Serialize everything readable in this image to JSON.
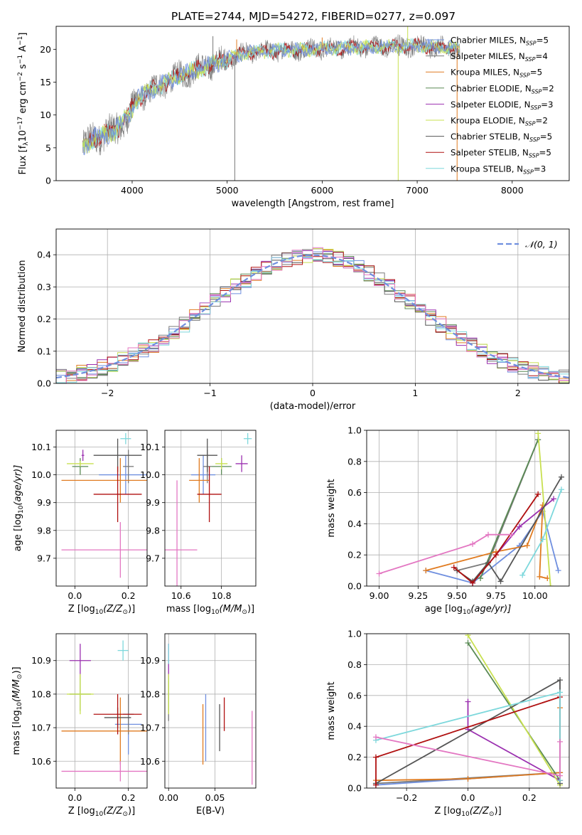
{
  "figure": {
    "title": "PLATE=2744, MJD=54272, FIBERID=0277, z=0.097"
  },
  "model_colors": {
    "Chabrier MILES": "#6f8fdf",
    "Salpeter MILES": "#7a7a7a",
    "Kroupa MILES": "#e07b20",
    "Chabrier ELODIE": "#5a8a55",
    "Salpeter ELODIE": "#9b30b0",
    "Kroupa ELODIE": "#c8e050",
    "Chabrier STELIB": "#555555",
    "Salpeter STELIB": "#b01010",
    "Kroupa STELIB": "#7dd8dc",
    "extra_pink": "#e377c2"
  },
  "chart_data": [
    {
      "id": "spectrum",
      "type": "line",
      "title": "PLATE=2744, MJD=54272, FIBERID=0277, z=0.097",
      "xlabel": "wavelength [Angstrom, rest frame]",
      "ylabel_main": "Flux [f",
      "ylabel_sub": "λ",
      "ylabel_rest": "10",
      "ylabel_exp": "−17",
      "ylabel_tail": " erg cm",
      "ylabel_exp2": "−2",
      "ylabel_tail2": " s",
      "ylabel_exp3": "−1",
      "ylabel_tail3": " A",
      "ylabel_exp4": "−1",
      "ylabel_end": "]",
      "xlim": [
        3200,
        8600
      ],
      "ylim": [
        0,
        23.5
      ],
      "xticks": [
        4000,
        5000,
        6000,
        7000,
        8000
      ],
      "yticks": [
        0,
        5,
        10,
        15,
        20
      ],
      "continuum_anchors": [
        [
          3480,
          5.2
        ],
        [
          3600,
          6.5
        ],
        [
          3800,
          7.5
        ],
        [
          3950,
          9.5
        ],
        [
          4050,
          12.5
        ],
        [
          4300,
          14.5
        ],
        [
          4500,
          16
        ],
        [
          4800,
          17.5
        ],
        [
          5000,
          18.5
        ],
        [
          5200,
          19.5
        ],
        [
          5500,
          19.8
        ],
        [
          5800,
          20
        ],
        [
          6200,
          20.2
        ],
        [
          6600,
          20.4
        ],
        [
          7000,
          20.5
        ],
        [
          7300,
          20.3
        ],
        [
          7450,
          20
        ]
      ],
      "spikes": [
        [
          5080,
          0
        ],
        [
          5100,
          21.5
        ],
        [
          6800,
          0
        ],
        [
          6810,
          19
        ],
        [
          7420,
          0
        ],
        [
          7440,
          19.5
        ],
        [
          4850,
          22
        ],
        [
          6000,
          21.8
        ],
        [
          6900,
          23.8
        ]
      ],
      "legend": [
        {
          "name_pre": "Chabrier MILES, N",
          "sub": "SSP",
          "name_post": "=5",
          "color": "#6f8fdf"
        },
        {
          "name_pre": "Salpeter MILES, N",
          "sub": "SSP",
          "name_post": "=4",
          "color": "#7a7a7a"
        },
        {
          "name_pre": "Kroupa MILES, N",
          "sub": "SSP",
          "name_post": "=5",
          "color": "#e07b20"
        },
        {
          "name_pre": "Chabrier ELODIE, N",
          "sub": "SSP",
          "name_post": "=2",
          "color": "#5a8a55"
        },
        {
          "name_pre": "Salpeter ELODIE, N",
          "sub": "SSP",
          "name_post": "=3",
          "color": "#9b30b0"
        },
        {
          "name_pre": "Kroupa ELODIE, N",
          "sub": "SSP",
          "name_post": "=2",
          "color": "#c8e050"
        },
        {
          "name_pre": "Chabrier STELIB, N",
          "sub": "SSP",
          "name_post": "=5",
          "color": "#555555"
        },
        {
          "name_pre": "Salpeter STELIB, N",
          "sub": "SSP",
          "name_post": "=5",
          "color": "#b01010"
        },
        {
          "name_pre": "Kroupa STELIB, N",
          "sub": "SSP",
          "name_post": "=3",
          "color": "#7dd8dc"
        }
      ]
    },
    {
      "id": "residuals",
      "type": "line",
      "xlabel": "(data-model)/error",
      "ylabel": "Normed distribution",
      "xlim": [
        -2.5,
        2.5
      ],
      "ylim": [
        0,
        0.48
      ],
      "xticks": [
        -2,
        -1,
        0,
        1,
        2
      ],
      "yticks": [
        0.0,
        0.1,
        0.2,
        0.3,
        0.4
      ],
      "grid": true,
      "legend": [
        {
          "name": "𝒩(0, 1)",
          "color": "#6f8fdf",
          "style": "dashed"
        }
      ],
      "gaussian": {
        "mean": 0,
        "sigma": 1
      },
      "histogram_bin_width": 0.1,
      "histogram_series_colors": [
        "#6f8fdf",
        "#7a7a7a",
        "#e07b20",
        "#5a8a55",
        "#9b30b0",
        "#c8e050",
        "#555555",
        "#b01010",
        "#7dd8dc",
        "#e377c2"
      ]
    },
    {
      "id": "age_vs_Z",
      "type": "scatter",
      "xlabel": "Z [log",
      "xlabel_sub": "10",
      "xlabel_tail": "(Z/Z",
      "xlabel_sub2": "⊙",
      "xlabel_end": ")]",
      "ylabel": "age  [log",
      "ylabel_sub": "10",
      "ylabel_tail": "(age/yr)]",
      "xlim": [
        -0.07,
        0.27
      ],
      "ylim": [
        9.6,
        10.16
      ],
      "xticks": [
        0.0,
        0.2
      ],
      "yticks": [
        9.7,
        9.8,
        9.9,
        10.0,
        10.1
      ],
      "points": [
        {
          "x": 0.19,
          "y": 10.0,
          "xerr": 0.1,
          "yerr": 0.07,
          "color": "#6f8fdf"
        },
        {
          "x": 0.2,
          "y": 10.03,
          "xerr": 0.02,
          "yerr": 0.06,
          "color": "#7a7a7a"
        },
        {
          "x": 0.17,
          "y": 9.98,
          "xerr": 0.22,
          "yerr": 0.08,
          "color": "#e07b20"
        },
        {
          "x": 0.02,
          "y": 10.03,
          "xerr": 0.03,
          "yerr": 0.03,
          "color": "#5a8a55"
        },
        {
          "x": 0.03,
          "y": 10.07,
          "xerr": 0.005,
          "yerr": 0.02,
          "color": "#9b30b0"
        },
        {
          "x": 0.02,
          "y": 10.04,
          "xerr": 0.05,
          "yerr": 0.01,
          "color": "#c8e050"
        },
        {
          "x": 0.16,
          "y": 10.07,
          "xerr": 0.09,
          "yerr": 0.06,
          "color": "#555555"
        },
        {
          "x": 0.16,
          "y": 9.93,
          "xerr": 0.09,
          "yerr": 0.1,
          "color": "#b01010"
        },
        {
          "x": 0.19,
          "y": 10.13,
          "xerr": 0.02,
          "yerr": 0.02,
          "color": "#7dd8dc"
        },
        {
          "x": 0.17,
          "y": 9.73,
          "xerr": 0.22,
          "yerr": 0.1,
          "color": "#e377c2"
        }
      ]
    },
    {
      "id": "age_vs_mass",
      "type": "scatter",
      "xlabel": "mass [log",
      "xlabel_sub": "10",
      "xlabel_tail": "(M/M",
      "xlabel_sub2": "⊙",
      "xlabel_end": ")]",
      "xlim": [
        10.52,
        10.97
      ],
      "ylim": [
        9.6,
        10.16
      ],
      "xticks": [
        10.6,
        10.8
      ],
      "yticks": [
        9.7,
        9.8,
        9.9,
        10.0,
        10.1
      ],
      "points": [
        {
          "x": 10.71,
          "y": 10.0,
          "xerr": 0.06,
          "yerr": 0.07,
          "color": "#6f8fdf"
        },
        {
          "x": 10.73,
          "y": 10.03,
          "xerr": 0.02,
          "yerr": 0.06,
          "color": "#7a7a7a"
        },
        {
          "x": 10.69,
          "y": 9.98,
          "xerr": 0.05,
          "yerr": 0.08,
          "color": "#e07b20"
        },
        {
          "x": 10.8,
          "y": 10.03,
          "xerr": 0.05,
          "yerr": 0.03,
          "color": "#5a8a55"
        },
        {
          "x": 10.9,
          "y": 10.04,
          "xerr": 0.03,
          "yerr": 0.03,
          "color": "#9b30b0"
        },
        {
          "x": 10.8,
          "y": 10.04,
          "xerr": 0.03,
          "yerr": 0.02,
          "color": "#c8e050"
        },
        {
          "x": 10.73,
          "y": 10.07,
          "xerr": 0.05,
          "yerr": 0.06,
          "color": "#555555"
        },
        {
          "x": 10.74,
          "y": 9.93,
          "xerr": 0.06,
          "yerr": 0.1,
          "color": "#b01010"
        },
        {
          "x": 10.93,
          "y": 10.13,
          "xerr": 0.02,
          "yerr": 0.02,
          "color": "#7dd8dc"
        },
        {
          "x": 10.58,
          "y": 9.73,
          "xerr": 0.1,
          "yerr": 0.25,
          "color": "#e377c2"
        }
      ]
    },
    {
      "id": "mass_weight_vs_age",
      "type": "line",
      "xlabel": "age  [log",
      "xlabel_sub": "10",
      "xlabel_tail": "(age/yr)]",
      "ylabel": "mass weight",
      "xlim": [
        8.92,
        10.22
      ],
      "ylim": [
        0,
        1
      ],
      "xticks": [
        9.0,
        9.25,
        9.5,
        9.75,
        10.0
      ],
      "yticks": [
        0.0,
        0.2,
        0.4,
        0.6,
        0.8,
        1.0
      ],
      "grid": true,
      "series": [
        {
          "color": "#6f8fdf",
          "points": [
            [
              9.3,
              0.1
            ],
            [
              9.6,
              0.02
            ],
            [
              9.9,
              0.26
            ],
            [
              10.05,
              0.48
            ],
            [
              10.15,
              0.1
            ]
          ]
        },
        {
          "color": "#7a7a7a",
          "points": [
            [
              9.5,
              0.1
            ],
            [
              9.7,
              0.15
            ],
            [
              10.02,
              0.94
            ]
          ]
        },
        {
          "color": "#e07b20",
          "points": [
            [
              9.3,
              0.1
            ],
            [
              9.75,
              0.22
            ],
            [
              9.95,
              0.26
            ],
            [
              10.05,
              0.52
            ],
            [
              10.03,
              0.06
            ],
            [
              10.08,
              0.05
            ]
          ]
        },
        {
          "color": "#5a8a55",
          "points": [
            [
              9.65,
              0.05
            ],
            [
              10.02,
              0.94
            ]
          ]
        },
        {
          "color": "#9b30b0",
          "points": [
            [
              9.6,
              0.02
            ],
            [
              9.9,
              0.38
            ],
            [
              10.12,
              0.56
            ]
          ]
        },
        {
          "color": "#c8e050",
          "points": [
            [
              10.02,
              0.98
            ],
            [
              10.1,
              0.0
            ]
          ]
        },
        {
          "color": "#555555",
          "points": [
            [
              9.5,
              0.1
            ],
            [
              9.6,
              0.03
            ],
            [
              9.7,
              0.15
            ],
            [
              9.78,
              0.03
            ],
            [
              10.17,
              0.7
            ]
          ]
        },
        {
          "color": "#b01010",
          "points": [
            [
              9.48,
              0.12
            ],
            [
              9.6,
              0.02
            ],
            [
              9.75,
              0.2
            ],
            [
              10.02,
              0.59
            ]
          ]
        },
        {
          "color": "#7dd8dc",
          "points": [
            [
              9.92,
              0.07
            ],
            [
              10.05,
              0.3
            ],
            [
              10.17,
              0.62
            ]
          ]
        },
        {
          "color": "#e377c2",
          "points": [
            [
              9.0,
              0.08
            ],
            [
              9.6,
              0.27
            ],
            [
              9.7,
              0.33
            ],
            [
              9.85,
              0.33
            ]
          ]
        }
      ]
    },
    {
      "id": "mass_vs_Z",
      "type": "scatter",
      "xlabel": "Z [log",
      "xlabel_sub": "10",
      "xlabel_tail": "(Z/Z",
      "xlabel_sub2": "⊙",
      "xlabel_end": ")]",
      "ylabel": "mass [log",
      "ylabel_sub": "10",
      "ylabel_tail": "(M/M",
      "ylabel_sub2": "⊙",
      "ylabel_end": ")]",
      "xlim": [
        -0.07,
        0.27
      ],
      "ylim": [
        10.52,
        10.98
      ],
      "xticks": [
        0.0,
        0.2
      ],
      "yticks": [
        10.6,
        10.7,
        10.8,
        10.9
      ],
      "points": [
        {
          "x": 0.2,
          "y": 10.71,
          "xerr": 0.05,
          "yerr": 0.09,
          "color": "#6f8fdf"
        },
        {
          "x": 0.2,
          "y": 10.74,
          "xerr": 0.02,
          "yerr": 0.06,
          "color": "#7a7a7a"
        },
        {
          "x": 0.17,
          "y": 10.69,
          "xerr": 0.22,
          "yerr": 0.1,
          "color": "#e07b20"
        },
        {
          "x": 0.02,
          "y": 10.8,
          "xerr": 0.04,
          "yerr": 0.05,
          "color": "#5a8a55"
        },
        {
          "x": 0.02,
          "y": 10.9,
          "xerr": 0.04,
          "yerr": 0.05,
          "color": "#9b30b0"
        },
        {
          "x": 0.02,
          "y": 10.8,
          "xerr": 0.05,
          "yerr": 0.06,
          "color": "#c8e050"
        },
        {
          "x": 0.16,
          "y": 10.73,
          "xerr": 0.05,
          "yerr": 0.03,
          "color": "#555555"
        },
        {
          "x": 0.16,
          "y": 10.74,
          "xerr": 0.09,
          "yerr": 0.06,
          "color": "#b01010"
        },
        {
          "x": 0.18,
          "y": 10.93,
          "xerr": 0.02,
          "yerr": 0.03,
          "color": "#7dd8dc"
        },
        {
          "x": 0.17,
          "y": 10.57,
          "xerr": 0.22,
          "yerr": 0.03,
          "color": "#e377c2"
        }
      ]
    },
    {
      "id": "mass_vs_ebv",
      "type": "scatter",
      "xlabel": "E(B-V)",
      "xlim": [
        -0.004,
        0.094
      ],
      "ylim": [
        10.52,
        10.98
      ],
      "xticks": [
        0.0,
        0.05
      ],
      "yticks": [
        10.6,
        10.7,
        10.8,
        10.9
      ],
      "points": [
        {
          "x": 0.04,
          "y": 10.7,
          "xerr": 0,
          "yerr": 0.1,
          "color": "#6f8fdf"
        },
        {
          "x": 0.0,
          "y": 10.78,
          "xerr": 0,
          "yerr": 0.06,
          "color": "#7a7a7a"
        },
        {
          "x": 0.037,
          "y": 10.68,
          "xerr": 0,
          "yerr": 0.09,
          "color": "#e07b20"
        },
        {
          "x": 0.0,
          "y": 10.8,
          "xerr": 0,
          "yerr": 0.05,
          "color": "#5a8a55"
        },
        {
          "x": 0.0,
          "y": 10.9,
          "xerr": 0,
          "yerr": 0.05,
          "color": "#9b30b0"
        },
        {
          "x": 0.0,
          "y": 10.8,
          "xerr": 0,
          "yerr": 0.06,
          "color": "#c8e050"
        },
        {
          "x": 0.055,
          "y": 10.7,
          "xerr": 0,
          "yerr": 0.07,
          "color": "#555555"
        },
        {
          "x": 0.06,
          "y": 10.74,
          "xerr": 0,
          "yerr": 0.05,
          "color": "#b01010"
        },
        {
          "x": 0.0,
          "y": 10.92,
          "xerr": 0,
          "yerr": 0.03,
          "color": "#7dd8dc"
        },
        {
          "x": 0.09,
          "y": 10.64,
          "xerr": 0,
          "yerr": 0.11,
          "color": "#e377c2"
        }
      ]
    },
    {
      "id": "mass_weight_vs_Z",
      "type": "line",
      "xlabel": "Z [log",
      "xlabel_sub": "10",
      "xlabel_tail": "(Z/Z",
      "xlabel_sub2": "⊙",
      "xlabel_end": ")]",
      "ylabel": "mass weight",
      "xlim": [
        -0.33,
        0.33
      ],
      "ylim": [
        0,
        1
      ],
      "xticks": [
        -0.2,
        0.0,
        0.2
      ],
      "yticks": [
        0.0,
        0.2,
        0.4,
        0.6,
        0.8,
        1.0
      ],
      "grid": true,
      "series": [
        {
          "color": "#6f8fdf",
          "points": [
            [
              -0.3,
              0.02
            ],
            [
              0.0,
              0.06
            ],
            [
              0.3,
              0.1
            ]
          ]
        },
        {
          "color": "#7a7a7a",
          "points": [
            [
              -0.3,
              0.03
            ],
            [
              0.3,
              0.1
            ]
          ]
        },
        {
          "color": "#e07b20",
          "points": [
            [
              -0.3,
              0.05
            ],
            [
              0.0,
              0.06
            ],
            [
              0.3,
              0.1
            ],
            [
              0.3,
              0.52
            ]
          ]
        },
        {
          "color": "#5a8a55",
          "points": [
            [
              0.0,
              0.94
            ],
            [
              0.3,
              0.05
            ]
          ]
        },
        {
          "color": "#9b30b0",
          "points": [
            [
              0.0,
              0.56
            ],
            [
              0.0,
              0.38
            ],
            [
              0.3,
              0.05
            ]
          ]
        },
        {
          "color": "#c8e050",
          "points": [
            [
              0.0,
              0.99
            ],
            [
              0.3,
              0.02
            ]
          ]
        },
        {
          "color": "#555555",
          "points": [
            [
              -0.3,
              0.03
            ],
            [
              0.3,
              0.7
            ],
            [
              0.3,
              0.03
            ]
          ]
        },
        {
          "color": "#b01010",
          "points": [
            [
              -0.3,
              0.02
            ],
            [
              -0.3,
              0.2
            ],
            [
              0.3,
              0.59
            ],
            [
              0.3,
              0.05
            ]
          ]
        },
        {
          "color": "#7dd8dc",
          "points": [
            [
              -0.3,
              0.31
            ],
            [
              0.3,
              0.62
            ],
            [
              0.3,
              0.05
            ]
          ]
        },
        {
          "color": "#e377c2",
          "points": [
            [
              -0.3,
              0.33
            ],
            [
              0.3,
              0.08
            ],
            [
              0.3,
              0.3
            ]
          ]
        }
      ]
    }
  ]
}
